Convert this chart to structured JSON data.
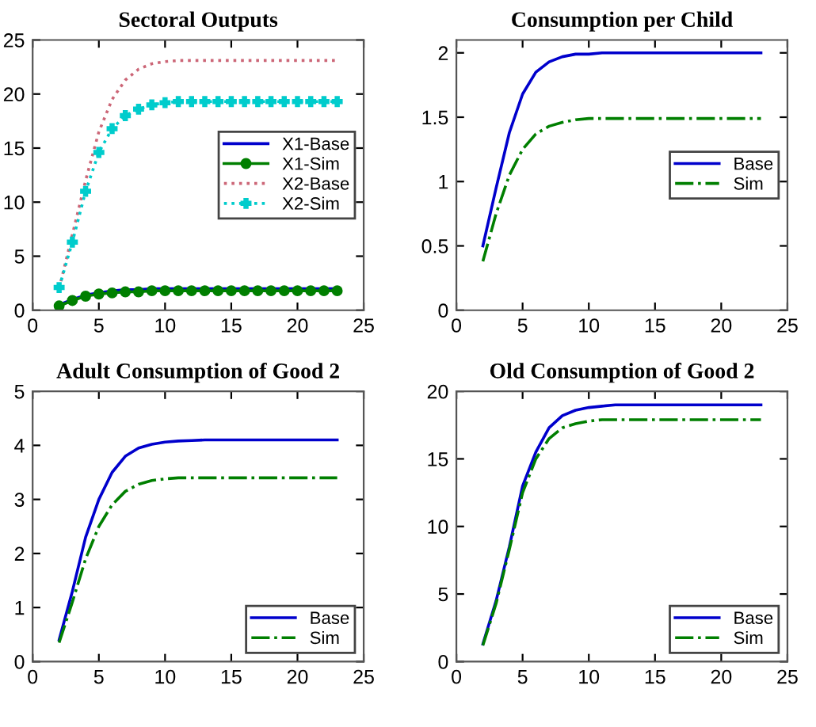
{
  "chart_data": [
    {
      "type": "line",
      "title": "Sectoral Outputs",
      "x": [
        2,
        3,
        4,
        5,
        6,
        7,
        8,
        9,
        10,
        11,
        12,
        13,
        14,
        15,
        16,
        17,
        18,
        19,
        20,
        21,
        22,
        23
      ],
      "xlim": [
        0,
        25
      ],
      "xticks": [
        0,
        5,
        10,
        15,
        20,
        25
      ],
      "ylim": [
        0,
        25
      ],
      "yticks": [
        0,
        5,
        10,
        15,
        20,
        25
      ],
      "legend": "center right",
      "series": [
        {
          "name": "X1-Base",
          "color": "#0000cc",
          "line_style": "solid",
          "values": [
            0.5,
            1.0,
            1.4,
            1.6,
            1.8,
            1.9,
            1.9,
            2.0,
            2.0,
            2.0,
            2.0,
            2.0,
            2.0,
            2.0,
            2.0,
            2.0,
            2.0,
            2.0,
            2.0,
            2.0,
            2.0,
            2.0
          ]
        },
        {
          "name": "X1-Sim",
          "color": "#007f00",
          "line_style": "solid",
          "marker": "circle",
          "values": [
            0.4,
            0.9,
            1.3,
            1.5,
            1.6,
            1.7,
            1.7,
            1.8,
            1.8,
            1.8,
            1.8,
            1.8,
            1.8,
            1.8,
            1.8,
            1.8,
            1.8,
            1.8,
            1.8,
            1.8,
            1.8,
            1.8
          ]
        },
        {
          "name": "X2-Base",
          "color": "#cc6677",
          "line_style": "dotted",
          "values": [
            2,
            7,
            12,
            16.5,
            19.5,
            21.3,
            22.3,
            22.8,
            23.0,
            23.1,
            23.1,
            23.1,
            23.1,
            23.1,
            23.1,
            23.1,
            23.1,
            23.1,
            23.1,
            23.1,
            23.1,
            23.1
          ]
        },
        {
          "name": "X2-Sim",
          "color": "#00cccc",
          "line_style": "dotted",
          "marker": "cross",
          "values": [
            2.1,
            6.3,
            11,
            14.6,
            16.8,
            18,
            18.6,
            19,
            19.2,
            19.3,
            19.3,
            19.3,
            19.3,
            19.3,
            19.3,
            19.3,
            19.3,
            19.3,
            19.3,
            19.3,
            19.3,
            19.3
          ]
        }
      ]
    },
    {
      "type": "line",
      "title": "Consumption per Child",
      "x": [
        2,
        3,
        4,
        5,
        6,
        7,
        8,
        9,
        10,
        11,
        12,
        13,
        14,
        15,
        16,
        17,
        18,
        19,
        20,
        21,
        22,
        23
      ],
      "xlim": [
        0,
        25
      ],
      "xticks": [
        0,
        5,
        10,
        15,
        20,
        25
      ],
      "ylim": [
        0,
        2.1
      ],
      "yticks": [
        0,
        0.5,
        1,
        1.5,
        2
      ],
      "legend": "center right",
      "series": [
        {
          "name": "Base",
          "color": "#0000cc",
          "line_style": "solid",
          "values": [
            0.5,
            0.95,
            1.38,
            1.68,
            1.85,
            1.93,
            1.97,
            1.99,
            1.99,
            2.0,
            2.0,
            2.0,
            2.0,
            2.0,
            2.0,
            2.0,
            2.0,
            2.0,
            2.0,
            2.0,
            2.0,
            2.0
          ]
        },
        {
          "name": "Sim",
          "color": "#007f00",
          "line_style": "dashdot",
          "values": [
            0.38,
            0.75,
            1.05,
            1.25,
            1.37,
            1.43,
            1.46,
            1.48,
            1.49,
            1.49,
            1.49,
            1.49,
            1.49,
            1.49,
            1.49,
            1.49,
            1.49,
            1.49,
            1.49,
            1.49,
            1.49,
            1.49
          ]
        }
      ]
    },
    {
      "type": "line",
      "title": "Adult Consumption of Good 2",
      "x": [
        2,
        3,
        4,
        5,
        6,
        7,
        8,
        9,
        10,
        11,
        12,
        13,
        14,
        15,
        16,
        17,
        18,
        19,
        20,
        21,
        22,
        23
      ],
      "xlim": [
        0,
        25
      ],
      "xticks": [
        0,
        5,
        10,
        15,
        20,
        25
      ],
      "ylim": [
        0,
        5
      ],
      "yticks": [
        0,
        1,
        2,
        3,
        4,
        5
      ],
      "legend": "bottom right",
      "series": [
        {
          "name": "Base",
          "color": "#0000cc",
          "line_style": "solid",
          "values": [
            0.4,
            1.3,
            2.3,
            3.0,
            3.5,
            3.8,
            3.95,
            4.02,
            4.06,
            4.08,
            4.09,
            4.1,
            4.1,
            4.1,
            4.1,
            4.1,
            4.1,
            4.1,
            4.1,
            4.1,
            4.1,
            4.1
          ]
        },
        {
          "name": "Sim",
          "color": "#007f00",
          "line_style": "dashdot",
          "values": [
            0.35,
            1.1,
            1.9,
            2.5,
            2.9,
            3.15,
            3.28,
            3.35,
            3.38,
            3.4,
            3.4,
            3.4,
            3.4,
            3.4,
            3.4,
            3.4,
            3.4,
            3.4,
            3.4,
            3.4,
            3.4,
            3.4
          ]
        }
      ]
    },
    {
      "type": "line",
      "title": "Old Consumption of Good 2",
      "x": [
        2,
        3,
        4,
        5,
        6,
        7,
        8,
        9,
        10,
        11,
        12,
        13,
        14,
        15,
        16,
        17,
        18,
        19,
        20,
        21,
        22,
        23
      ],
      "xlim": [
        0,
        25
      ],
      "xticks": [
        0,
        5,
        10,
        15,
        20,
        25
      ],
      "ylim": [
        0,
        20
      ],
      "yticks": [
        0,
        5,
        10,
        15,
        20
      ],
      "legend": "bottom right",
      "series": [
        {
          "name": "Base",
          "color": "#0000cc",
          "line_style": "solid",
          "values": [
            1.3,
            4.5,
            8.5,
            13,
            15.5,
            17.3,
            18.2,
            18.6,
            18.8,
            18.9,
            19.0,
            19.0,
            19.0,
            19.0,
            19.0,
            19.0,
            19.0,
            19.0,
            19.0,
            19.0,
            19.0,
            19.0
          ]
        },
        {
          "name": "Sim",
          "color": "#007f00",
          "line_style": "dashdot",
          "values": [
            1.2,
            4.3,
            8.3,
            12.5,
            15.0,
            16.5,
            17.3,
            17.6,
            17.8,
            17.9,
            17.9,
            17.9,
            17.9,
            17.9,
            17.9,
            17.9,
            17.9,
            17.9,
            17.9,
            17.9,
            17.9,
            17.9
          ]
        }
      ]
    }
  ]
}
